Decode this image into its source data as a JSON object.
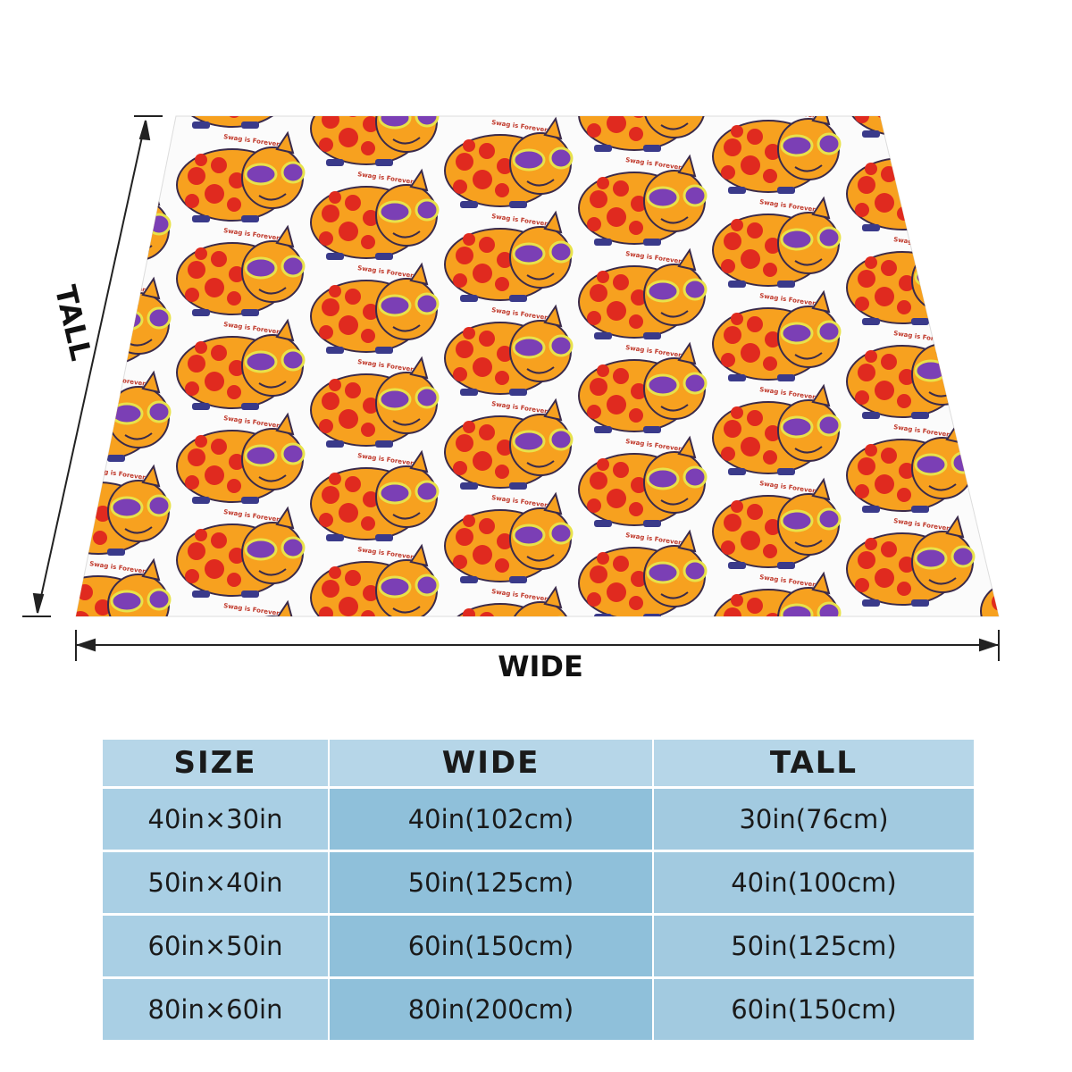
{
  "pattern_text": "Swag is Forever",
  "dimension_labels": {
    "tall": "TALL",
    "wide": "WIDE"
  },
  "table": {
    "header": [
      "SIZE",
      "WIDE",
      "TALL"
    ],
    "rows": [
      [
        "40in×30in",
        "40in(102cm)",
        "30in(76cm)"
      ],
      [
        "50in×40in",
        "50in(125cm)",
        "40in(100cm)"
      ],
      [
        "60in×50in",
        "60in(150cm)",
        "50in(125cm)"
      ],
      [
        "80in×60in",
        "80in(200cm)",
        "60in(150cm)"
      ]
    ]
  }
}
